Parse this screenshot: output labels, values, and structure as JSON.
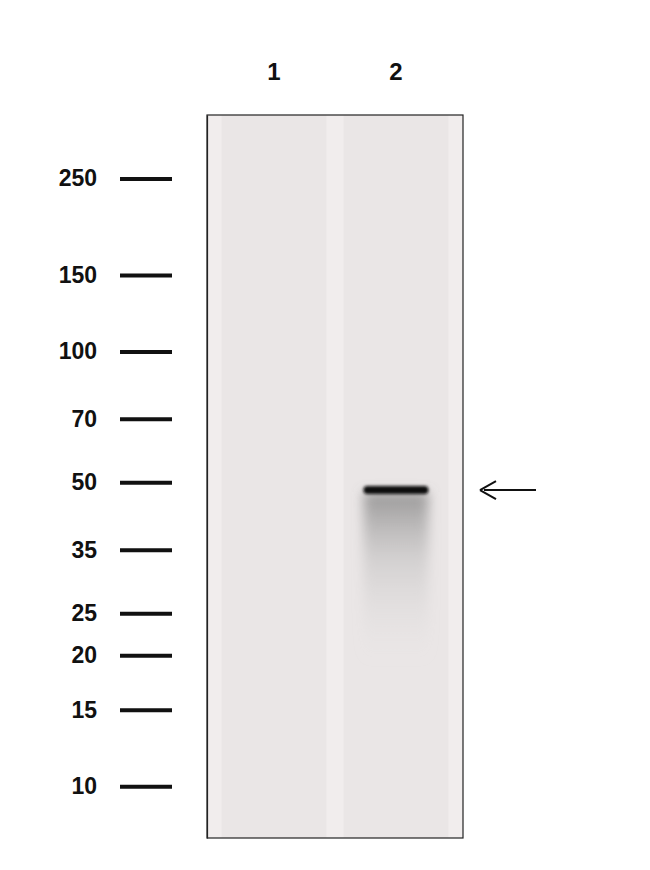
{
  "chart_data": {
    "type": "western_blot",
    "categories": [
      "1",
      "2"
    ],
    "values": [
      null,
      48
    ],
    "log": "y",
    "ylim": [
      7.6,
      350
    ],
    "yticks": [
      250,
      150,
      100,
      70,
      50,
      35,
      25,
      20,
      15,
      10
    ]
  }
}
